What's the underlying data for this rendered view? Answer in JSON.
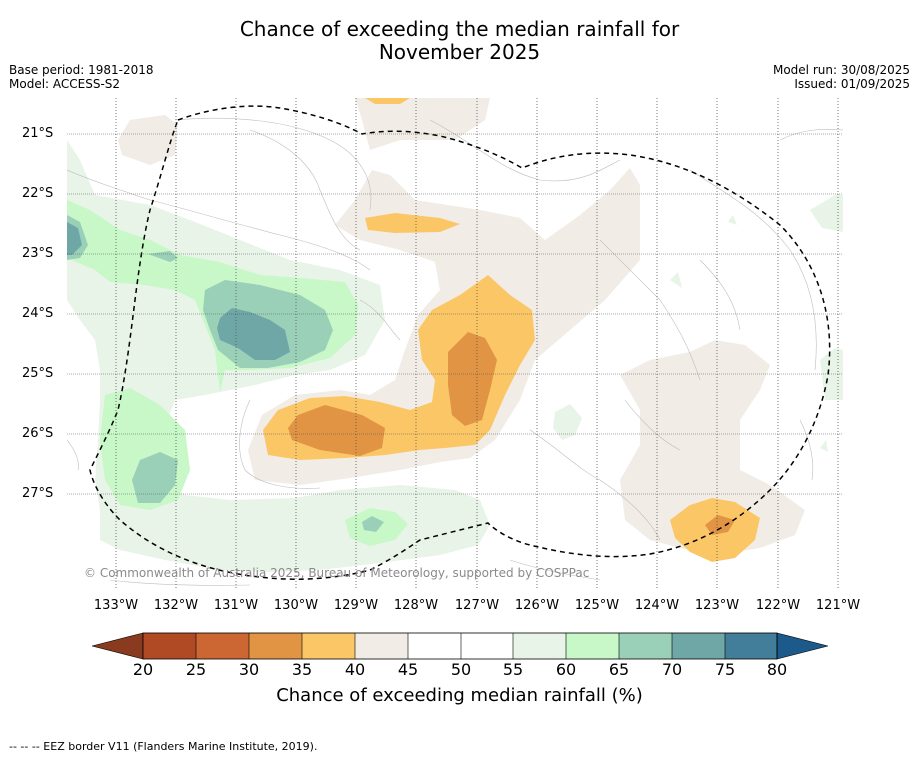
{
  "title_line1": "Chance of exceeding the median rainfall for",
  "title_line2": "November 2025",
  "base_period": "Base period: 1981-2018",
  "model": "Model: ACCESS-S2",
  "model_run": "Model run: 30/08/2025",
  "issued": "Issued: 01/09/2025",
  "latitude_labels": [
    "21°S",
    "22°S",
    "23°S",
    "24°S",
    "25°S",
    "26°S",
    "27°S"
  ],
  "longitude_labels": [
    "133°W",
    "132°W",
    "131°W",
    "130°W",
    "129°W",
    "128°W",
    "127°W",
    "126°W",
    "125°W",
    "124°W",
    "123°W",
    "122°W",
    "121°W"
  ],
  "credit": "© Commonwealth of Australia 2025, Bureau of Meteorology, supported by COSPPac",
  "colorbar": {
    "ticks": [
      "20",
      "25",
      "30",
      "35",
      "40",
      "45",
      "50",
      "55",
      "60",
      "65",
      "70",
      "75",
      "80"
    ],
    "label": "Chance of exceeding median rainfall (%)",
    "colors": [
      "#8a3a1e",
      "#b04a24",
      "#cc6633",
      "#e09444",
      "#fbc766",
      "#f1ece6",
      "#ffffff",
      "#ffffff",
      "#e8f4e8",
      "#c8f7c8",
      "#9bd0b8",
      "#6fa6a6",
      "#427d99",
      "#1b5a8a"
    ]
  },
  "footer": "--  --  -- EEZ border V11 (Flanders Marine Institute, 2019)."
}
